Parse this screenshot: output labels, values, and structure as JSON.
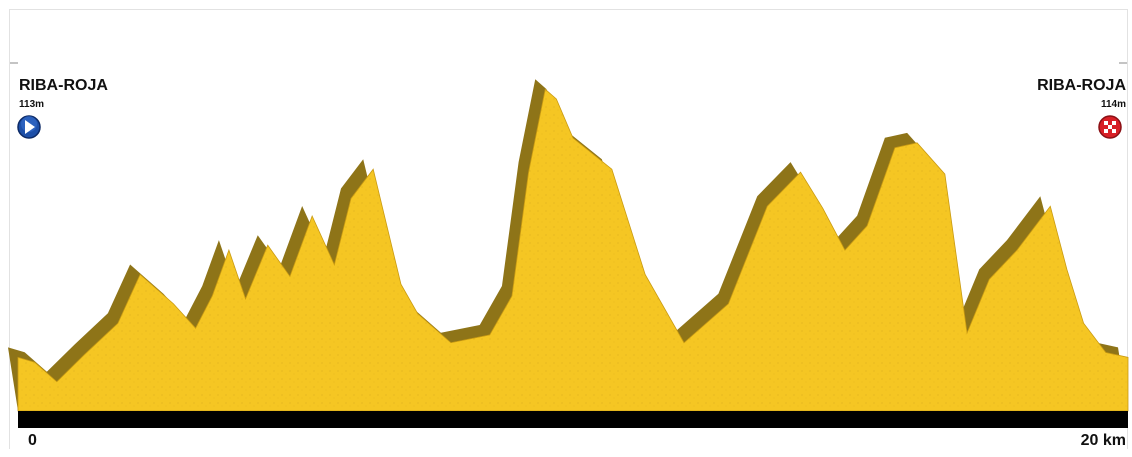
{
  "chart_data": {
    "type": "area",
    "title": "",
    "xlabel": "",
    "ylabel": "",
    "x_unit": "km",
    "xlim": [
      0,
      20
    ],
    "ylim": [
      60,
      420
    ],
    "start": {
      "name": "RIBA-ROJA",
      "altitude_label": "113m",
      "icon": "play-start-icon"
    },
    "finish": {
      "name": "RIBA-ROJA",
      "altitude_label": "114m",
      "icon": "checkered-finish-icon"
    },
    "x_tick_labels": [
      "0",
      "20 km"
    ],
    "colors": {
      "fill": "#f5c623",
      "shadow": "#8e7418",
      "base": "#000000"
    },
    "series": [
      {
        "x": [
          0,
          0.3,
          0.7,
          1.2,
          1.8,
          2.2,
          2.8,
          3.2,
          3.5,
          3.8,
          4.1,
          4.5,
          4.9,
          5.3,
          5.7,
          6.0,
          6.4,
          6.9,
          7.2,
          7.8,
          8.5,
          8.9,
          9.2,
          9.5,
          9.7,
          10.0,
          10.7,
          11.3,
          12.0,
          12.8,
          13.5,
          14.1,
          14.5,
          14.9,
          15.3,
          15.8,
          16.2,
          16.7,
          17.1,
          17.5,
          18.0,
          18.6,
          18.9,
          19.2,
          19.6,
          20
        ],
        "y": [
          115,
          110,
          90,
          118,
          150,
          200,
          170,
          145,
          178,
          225,
          175,
          230,
          198,
          260,
          210,
          278,
          308,
          190,
          160,
          130,
          138,
          178,
          305,
          390,
          380,
          340,
          308,
          200,
          130,
          170,
          270,
          305,
          268,
          225,
          250,
          330,
          335,
          303,
          140,
          195,
          225,
          270,
          205,
          150,
          120,
          115
        ]
      }
    ]
  }
}
